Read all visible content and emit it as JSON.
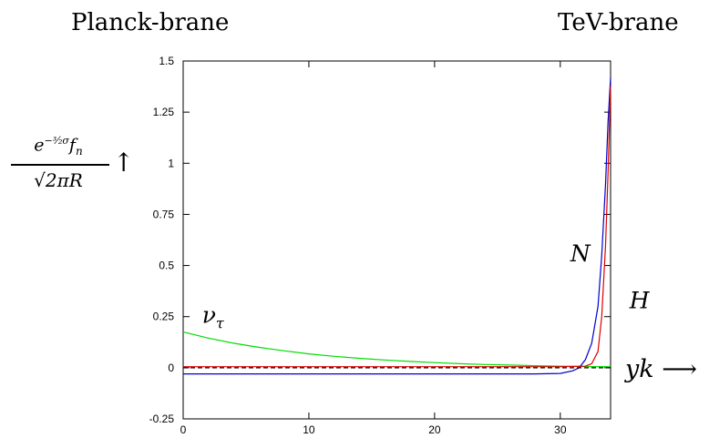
{
  "header": {
    "left_label": "Planck-brane",
    "right_label": "TeV-brane"
  },
  "axes": {
    "ylabel_numerator_base": "e",
    "ylabel_numerator_exp": "−³⁄₂σ",
    "ylabel_numerator_rest": "f",
    "ylabel_numerator_sub": "n",
    "ylabel_denominator": "√2πR",
    "ylabel_arrow": "↑",
    "xlabel": "yk ⟶"
  },
  "chart_data": {
    "type": "line",
    "xlim": [
      0,
      34
    ],
    "ylim": [
      -0.25,
      1.5
    ],
    "x_ticks": [
      0,
      10,
      20,
      30
    ],
    "x_tick_labels": [
      "0",
      "10",
      "20",
      "30"
    ],
    "y_ticks": [
      -0.25,
      0,
      0.25,
      0.5,
      0.75,
      1,
      1.25,
      1.5
    ],
    "y_tick_labels": [
      "-0.25",
      "0",
      "0.25",
      "0.5",
      "0.75",
      "1",
      "1.25",
      "1.5"
    ],
    "grid": false,
    "series": [
      {
        "name": "ν_τ",
        "color": "#00dd00",
        "x": [
          0,
          2,
          4,
          6,
          8,
          10,
          12,
          14,
          16,
          18,
          20,
          22,
          24,
          26,
          28,
          30,
          32,
          34
        ],
        "y": [
          0.175,
          0.145,
          0.12,
          0.1,
          0.083,
          0.068,
          0.056,
          0.046,
          0.038,
          0.031,
          0.025,
          0.02,
          0.016,
          0.013,
          0.01,
          0.008,
          0.006,
          0.005
        ]
      },
      {
        "name": "N",
        "color": "#0000cc",
        "x": [
          0,
          10,
          20,
          28,
          30,
          31,
          31.5,
          32,
          32.5,
          33,
          33.3,
          33.6,
          33.8,
          34
        ],
        "y": [
          -0.03,
          -0.03,
          -0.03,
          -0.03,
          -0.028,
          -0.015,
          0.0,
          0.04,
          0.12,
          0.3,
          0.55,
          0.9,
          1.2,
          1.42
        ]
      },
      {
        "name": "H",
        "color": "#dd0000",
        "x": [
          0,
          10,
          20,
          30,
          32,
          32.5,
          33,
          33.3,
          33.6,
          33.8,
          34
        ],
        "y": [
          0.005,
          0.005,
          0.005,
          0.005,
          0.008,
          0.02,
          0.08,
          0.25,
          0.6,
          0.95,
          1.38
        ]
      },
      {
        "name": "",
        "color": "#000000",
        "dashed": true,
        "x": [
          0,
          34
        ],
        "y": [
          0,
          0
        ]
      }
    ],
    "annotations": [
      {
        "text": "N",
        "x": 30.8,
        "y": 0.52
      },
      {
        "text": "H",
        "x": 35.5,
        "y": 0.29
      },
      {
        "text": "ν_τ",
        "x": 1.5,
        "y": 0.22
      }
    ]
  }
}
